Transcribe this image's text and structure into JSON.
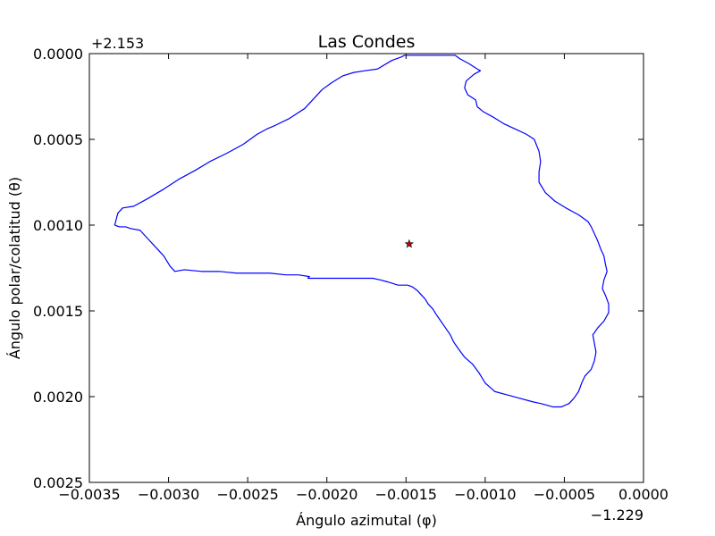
{
  "chart_data": {
    "type": "line",
    "title": "Las Condes",
    "xlabel": "Ángulo azimutal (φ)",
    "ylabel": "Ángulo polar/colatitud (θ)",
    "x_offset_label": "−1.229",
    "y_offset_label": "+2.153",
    "xlim": [
      -0.0035,
      0.0
    ],
    "ylim": [
      0.0025,
      0.0
    ],
    "y_inverted": true,
    "grid": false,
    "xticks": [
      -0.0035,
      -0.003,
      -0.0025,
      -0.002,
      -0.0015,
      -0.001,
      -0.0005,
      0.0
    ],
    "xtick_labels": [
      "−0.0035",
      "−0.0030",
      "−0.0025",
      "−0.0020",
      "−0.0015",
      "−0.0010",
      "−0.0005",
      "0.0000"
    ],
    "yticks": [
      0.0,
      0.0005,
      0.001,
      0.0015,
      0.002,
      0.0025
    ],
    "ytick_labels": [
      "0.0000",
      "0.0005",
      "0.0010",
      "0.0015",
      "0.0020",
      "0.0025"
    ],
    "series": [
      {
        "color": "#0000ff",
        "marker": "none",
        "x": [
          -0.00334,
          -0.00332,
          -0.00329,
          -0.00322,
          -0.00314,
          -0.00303,
          -0.00293,
          -0.00283,
          -0.00274,
          -0.00263,
          -0.00253,
          -0.00244,
          -0.00238,
          -0.00233,
          -0.00224,
          -0.00214,
          -0.00208,
          -0.00203,
          -0.00197,
          -0.0019,
          -0.00183,
          -0.00176,
          -0.00168,
          -0.00159,
          -0.00153,
          -0.00151,
          -0.00148,
          -0.00145,
          -0.00139,
          -0.00131,
          -0.00124,
          -0.00119,
          -0.00116,
          -0.0011,
          -0.00105,
          -0.00103,
          -0.00107,
          -0.00112,
          -0.00113,
          -0.00111,
          -0.00106,
          -0.00105,
          -0.00101,
          -0.00095,
          -0.00088,
          -0.00081,
          -0.00074,
          -0.00069,
          -0.00066,
          -0.00065,
          -0.00066,
          -0.00066,
          -0.00062,
          -0.00056,
          -0.00049,
          -0.00041,
          -0.00035,
          -0.00033,
          -0.00031,
          -0.00029,
          -0.00027,
          -0.00025,
          -0.00024,
          -0.00023,
          -0.00025,
          -0.00026,
          -0.00024,
          -0.00022,
          -0.00022,
          -0.00025,
          -0.00029,
          -0.00032,
          -0.00031,
          -0.0003,
          -0.00031,
          -0.00033,
          -0.00037,
          -0.00039,
          -0.00041,
          -0.00044,
          -0.00047,
          -0.00052,
          -0.00057,
          -0.00061,
          -0.00065,
          -0.0007,
          -0.00078,
          -0.00086,
          -0.00094,
          -0.001,
          -0.00104,
          -0.00108,
          -0.00113,
          -0.00117,
          -0.0012,
          -0.00122,
          -0.00125,
          -0.00128,
          -0.00131,
          -0.00133,
          -0.00136,
          -0.00138,
          -0.00141,
          -0.00143,
          -0.00146,
          -0.00149,
          -0.00155,
          -0.00162,
          -0.00166,
          -0.00171,
          -0.00177,
          -0.00184,
          -0.00192,
          -0.002,
          -0.00208,
          -0.00212,
          -0.00211,
          -0.00218,
          -0.00226,
          -0.00236,
          -0.00246,
          -0.00257,
          -0.00268,
          -0.00279,
          -0.0029,
          -0.00296,
          -0.00299,
          -0.00303,
          -0.00308,
          -0.00313,
          -0.00318,
          -0.00324,
          -0.00327,
          -0.00331,
          -0.00334
        ],
        "y": [
          0.001,
          0.00093,
          0.0009,
          0.00089,
          0.00085,
          0.00079,
          0.00073,
          0.00068,
          0.00063,
          0.00058,
          0.00053,
          0.00047,
          0.00044,
          0.00042,
          0.00038,
          0.00032,
          0.00026,
          0.00021,
          0.00017,
          0.00013,
          0.00011,
          0.0001,
          9e-05,
          4e-05,
          2e-05,
          1e-05,
          1e-05,
          1e-05,
          1e-05,
          1e-05,
          1e-05,
          1e-05,
          3e-05,
          6e-05,
          9e-05,
          0.0001,
          0.00012,
          0.00016,
          0.0002,
          0.00024,
          0.00027,
          0.00031,
          0.00034,
          0.00037,
          0.00041,
          0.00044,
          0.00047,
          0.0005,
          0.00057,
          0.00063,
          0.00069,
          0.00075,
          0.00081,
          0.00086,
          0.0009,
          0.00094,
          0.00098,
          0.00101,
          0.00105,
          0.00109,
          0.00114,
          0.00118,
          0.00123,
          0.00127,
          0.00132,
          0.00137,
          0.00141,
          0.00146,
          0.00151,
          0.00156,
          0.0016,
          0.00164,
          0.00169,
          0.00174,
          0.00179,
          0.00184,
          0.00188,
          0.00192,
          0.00197,
          0.00201,
          0.00204,
          0.00206,
          0.00206,
          0.00205,
          0.00204,
          0.00203,
          0.00201,
          0.00199,
          0.00197,
          0.00192,
          0.00186,
          0.00181,
          0.00177,
          0.00172,
          0.00168,
          0.00164,
          0.0016,
          0.00156,
          0.00152,
          0.00149,
          0.00146,
          0.00143,
          0.0014,
          0.00138,
          0.00136,
          0.00135,
          0.00135,
          0.00133,
          0.00132,
          0.00131,
          0.00131,
          0.00131,
          0.00131,
          0.00131,
          0.00131,
          0.00131,
          0.0013,
          0.00129,
          0.00129,
          0.00128,
          0.00128,
          0.00128,
          0.00127,
          0.00127,
          0.00126,
          0.00127,
          0.00124,
          0.00118,
          0.00113,
          0.00108,
          0.00103,
          0.00102,
          0.00101,
          0.00101,
          0.001
        ]
      },
      {
        "color": "#cc0000",
        "marker": "star",
        "x": [
          -0.00148
        ],
        "y": [
          0.00111
        ]
      }
    ]
  }
}
